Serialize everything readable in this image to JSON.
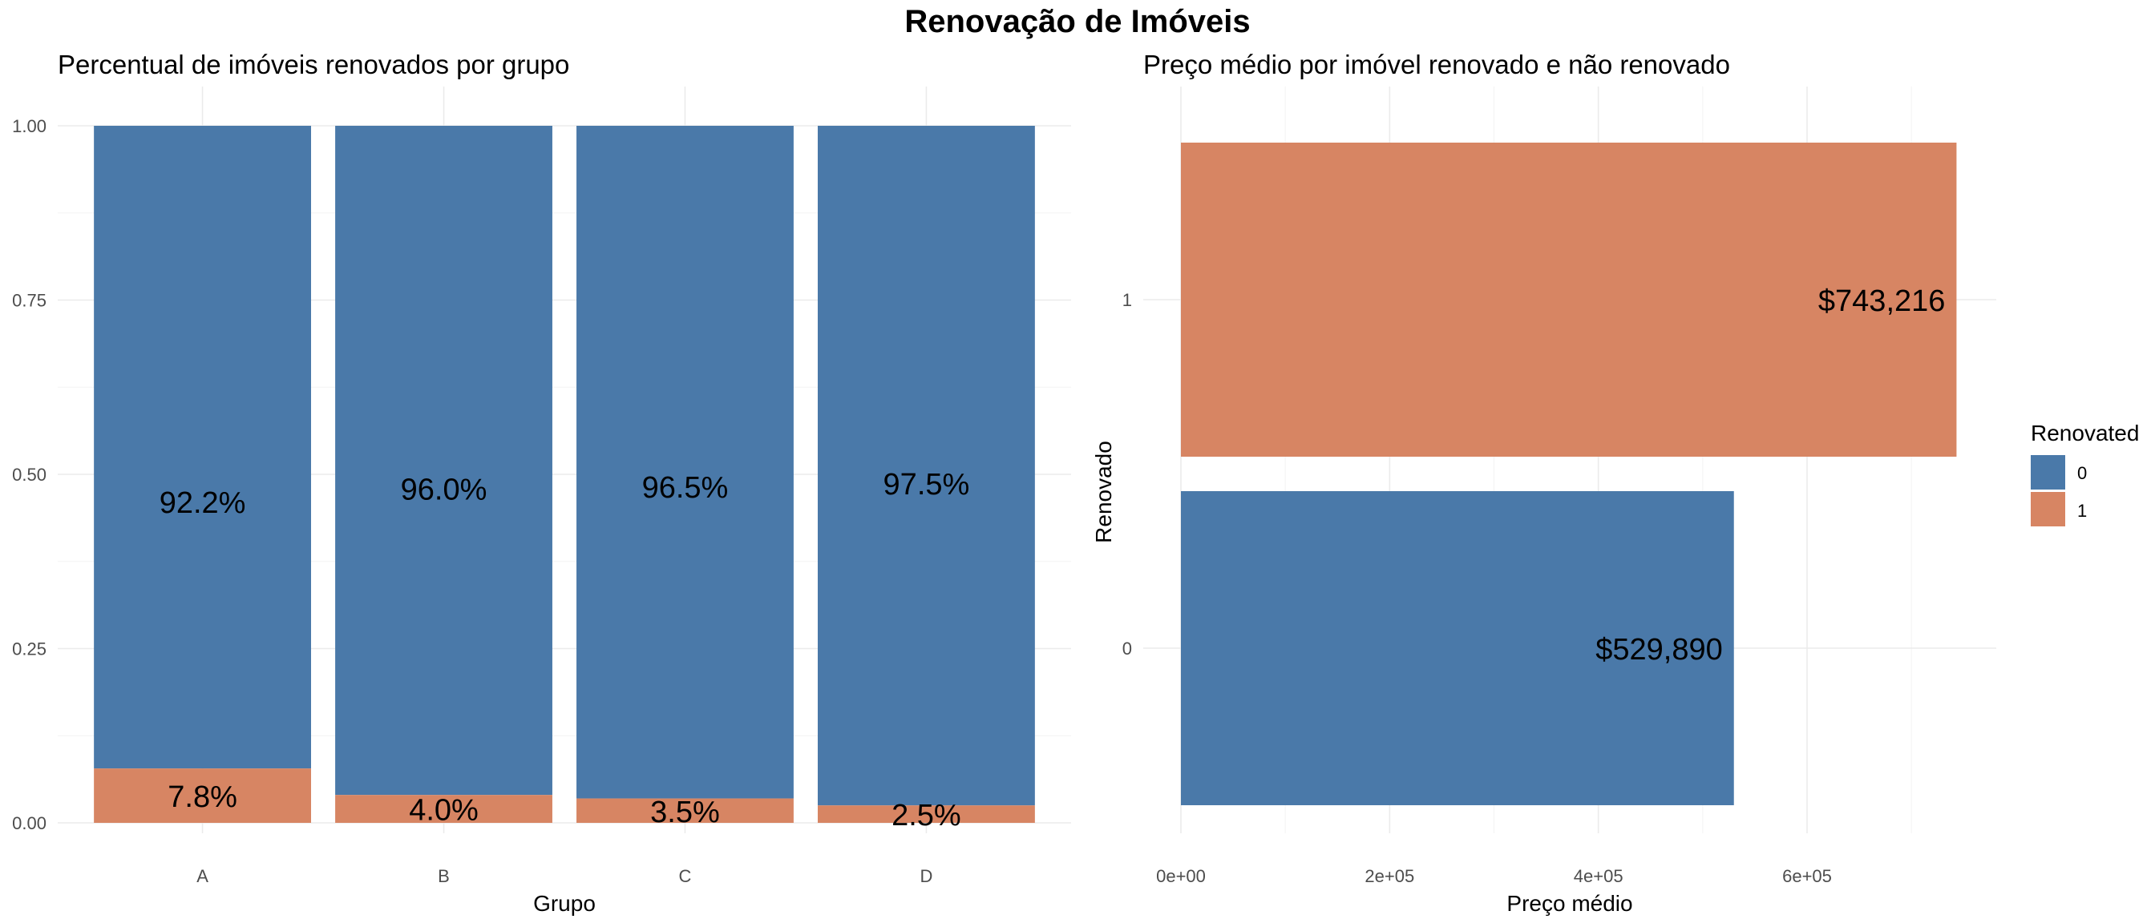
{
  "figure_title": "Renovação de Imóveis",
  "colors": {
    "not_renovated": "#4a79a9",
    "renovated": "#d78563"
  },
  "chart_data": [
    {
      "type": "bar",
      "stacked": true,
      "title": "Percentual de imóveis renovados por grupo",
      "xlabel": "Grupo",
      "ylabel": "",
      "ylim": [
        0,
        1
      ],
      "yticks": [
        "0.00",
        "0.25",
        "0.50",
        "0.75",
        "1.00"
      ],
      "categories": [
        "A",
        "B",
        "C",
        "D"
      ],
      "series": [
        {
          "name": "0",
          "values": [
            0.922,
            0.96,
            0.965,
            0.975
          ]
        },
        {
          "name": "1",
          "values": [
            0.078,
            0.04,
            0.035,
            0.025
          ]
        }
      ],
      "labels_not_renovated": [
        "92.2%",
        "96.0%",
        "96.5%",
        "97.5%"
      ],
      "labels_renovated": [
        "7.8%",
        "4.0%",
        "3.5%",
        "2.5%"
      ],
      "grid": true
    },
    {
      "type": "bar",
      "orientation": "horizontal",
      "title": "Preço médio por imóvel renovado e não renovado",
      "xlabel": "Preço médio",
      "ylabel": "Renovado",
      "xlim": [
        0,
        780000
      ],
      "xticks": [
        0,
        200000,
        400000,
        600000
      ],
      "xtick_labels": [
        "0e+00",
        "2e+05",
        "4e+05",
        "6e+05"
      ],
      "categories": [
        "0",
        "1"
      ],
      "values": [
        529890,
        743216
      ],
      "value_labels": [
        "$529,890",
        "$743,216"
      ],
      "grid": true,
      "legend": {
        "title": "Renovated",
        "placement": "right",
        "entries": [
          "0",
          "1"
        ]
      }
    }
  ]
}
